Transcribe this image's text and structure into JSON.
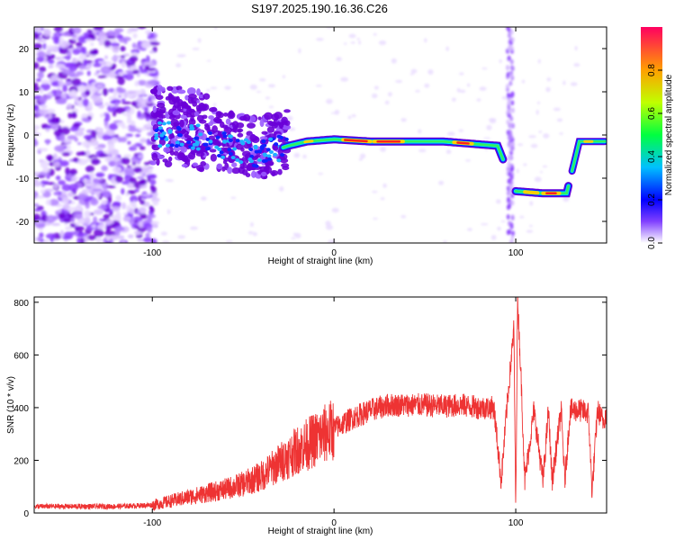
{
  "title": "S197.2025.190.16.36.C26",
  "colors": {
    "snr_line": "#ee3333",
    "spectrogram_base": "#6a00d8"
  },
  "chart_data": [
    {
      "type": "heatmap",
      "title": "S197.2025.190.16.36.C26",
      "xlabel": "Height of straight line (km)",
      "ylabel": "Frequency (Hz)",
      "xlim": [
        -165,
        150
      ],
      "ylim": [
        -25,
        25
      ],
      "xticks": [
        -100,
        0,
        100
      ],
      "yticks": [
        -20,
        -10,
        0,
        10,
        20
      ],
      "grid": false,
      "colorbar": {
        "label": "Normalized spectral amplitude",
        "range": [
          0.0,
          1.0
        ],
        "ticks": [
          "0.0",
          "0.2",
          "0.4",
          "0.6",
          "0.8"
        ],
        "colormap": "rainbow"
      },
      "ridge": [
        {
          "x": -100,
          "y": 0.5
        },
        {
          "x": -80,
          "y": 0.0
        },
        {
          "x": -60,
          "y": -2.5
        },
        {
          "x": -40,
          "y": -4.5
        },
        {
          "x": -25,
          "y": -2.5
        },
        {
          "x": -15,
          "y": -1.5
        },
        {
          "x": 0,
          "y": -1.0
        },
        {
          "x": 20,
          "y": -1.5
        },
        {
          "x": 40,
          "y": -1.5
        },
        {
          "x": 60,
          "y": -1.5
        },
        {
          "x": 75,
          "y": -2.0
        },
        {
          "x": 90,
          "y": -2.5
        },
        {
          "x": 100,
          "y": -13.0
        },
        {
          "x": 115,
          "y": -13.5
        },
        {
          "x": 128,
          "y": -13.5
        },
        {
          "x": 135,
          "y": -1.5
        },
        {
          "x": 150,
          "y": -1.5
        }
      ]
    },
    {
      "type": "line",
      "xlabel": "Height of straight line (km)",
      "ylabel": "SNR (10 * v/v)",
      "xlim": [
        -165,
        150
      ],
      "ylim": [
        0,
        820
      ],
      "xticks": [
        -100,
        0,
        100
      ],
      "yticks": [
        0,
        200,
        400,
        600,
        800
      ],
      "grid": false,
      "series": [
        {
          "x": [
            -165,
            -140,
            -120,
            -100,
            -90,
            -80,
            -70,
            -60,
            -50,
            -40,
            -30,
            -20,
            -10,
            0,
            10,
            20,
            30,
            40,
            50,
            60,
            70,
            80,
            88,
            92,
            95,
            99,
            100,
            101,
            103,
            105,
            110,
            115,
            118,
            120,
            125,
            127,
            130,
            135,
            140,
            142,
            145,
            148,
            150
          ],
          "y": [
            25,
            25,
            25,
            30,
            45,
            60,
            75,
            90,
            110,
            140,
            190,
            240,
            280,
            320,
            360,
            390,
            410,
            410,
            410,
            405,
            410,
            400,
            400,
            120,
            390,
            700,
            0,
            820,
            500,
            120,
            390,
            120,
            390,
            120,
            390,
            120,
            390,
            390,
            380,
            80,
            390,
            350,
            380
          ]
        }
      ]
    }
  ]
}
